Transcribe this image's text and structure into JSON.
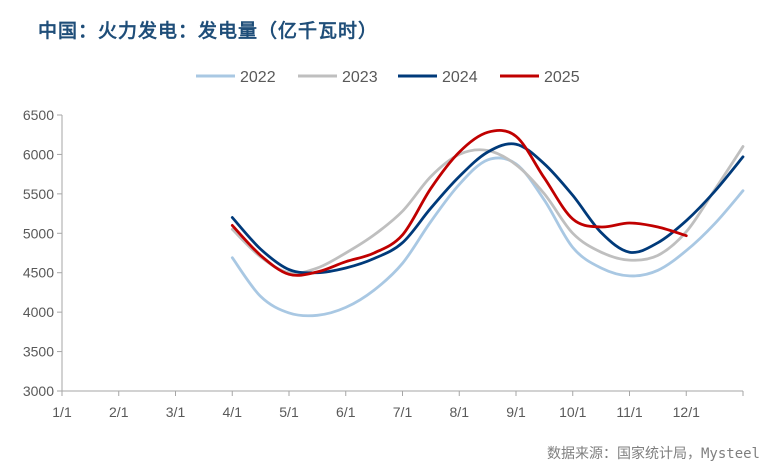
{
  "title": "中国：火力发电：发电量（亿千瓦时）",
  "source": "数据来源：国家统计局，Mysteel",
  "chart_data": {
    "type": "line",
    "categories": [
      "1/1",
      "2/1",
      "3/1",
      "4/1",
      "5/1",
      "6/1",
      "7/1",
      "8/1",
      "9/1",
      "10/1",
      "11/1",
      "12/1"
    ],
    "ylim": [
      3000,
      6500
    ],
    "yticks": [
      3000,
      3500,
      4000,
      4500,
      5000,
      5500,
      6000,
      6500
    ],
    "grid": false,
    "legend_position": "top",
    "series": [
      {
        "name": "2022",
        "color": "#a9c8e3",
        "x": [
          4.0,
          4.5,
          5.0,
          5.5,
          6.0,
          6.5,
          7.0,
          7.5,
          8.0,
          8.5,
          9.0,
          9.5,
          10.0,
          10.5,
          11.0,
          11.5,
          12.0,
          12.5,
          13.0
        ],
        "y": [
          4690,
          4200,
          3990,
          3960,
          4060,
          4280,
          4620,
          5150,
          5620,
          5930,
          5880,
          5420,
          4820,
          4560,
          4460,
          4530,
          4780,
          5120,
          5540
        ]
      },
      {
        "name": "2023",
        "color": "#bfbfbf",
        "x": [
          4.0,
          4.5,
          5.0,
          5.5,
          6.0,
          6.5,
          7.0,
          7.5,
          8.0,
          8.5,
          9.0,
          9.5,
          10.0,
          10.5,
          11.0,
          11.5,
          12.0,
          12.5,
          13.0
        ],
        "y": [
          5050,
          4700,
          4500,
          4560,
          4750,
          4980,
          5280,
          5720,
          6000,
          6050,
          5870,
          5500,
          5000,
          4760,
          4660,
          4720,
          5020,
          5550,
          6100
        ]
      },
      {
        "name": "2024",
        "color": "#003a7a",
        "x": [
          4.0,
          4.5,
          5.0,
          5.5,
          6.0,
          6.5,
          7.0,
          7.5,
          8.0,
          8.5,
          9.0,
          9.5,
          10.0,
          10.5,
          11.0,
          11.5,
          12.0,
          12.5,
          13.0
        ],
        "y": [
          5200,
          4800,
          4540,
          4500,
          4560,
          4680,
          4880,
          5320,
          5720,
          6030,
          6130,
          5880,
          5480,
          5010,
          4760,
          4880,
          5160,
          5530,
          5970
        ]
      },
      {
        "name": "2025",
        "color": "#c00000",
        "x": [
          4.0,
          4.5,
          5.0,
          5.5,
          6.0,
          6.5,
          7.0,
          7.5,
          8.0,
          8.5,
          9.0,
          9.5,
          10.0,
          10.5,
          11.0,
          11.5,
          12.0
        ],
        "y": [
          5100,
          4720,
          4480,
          4510,
          4640,
          4750,
          4980,
          5570,
          6030,
          6280,
          6230,
          5700,
          5180,
          5080,
          5130,
          5080,
          4970
        ]
      }
    ]
  }
}
